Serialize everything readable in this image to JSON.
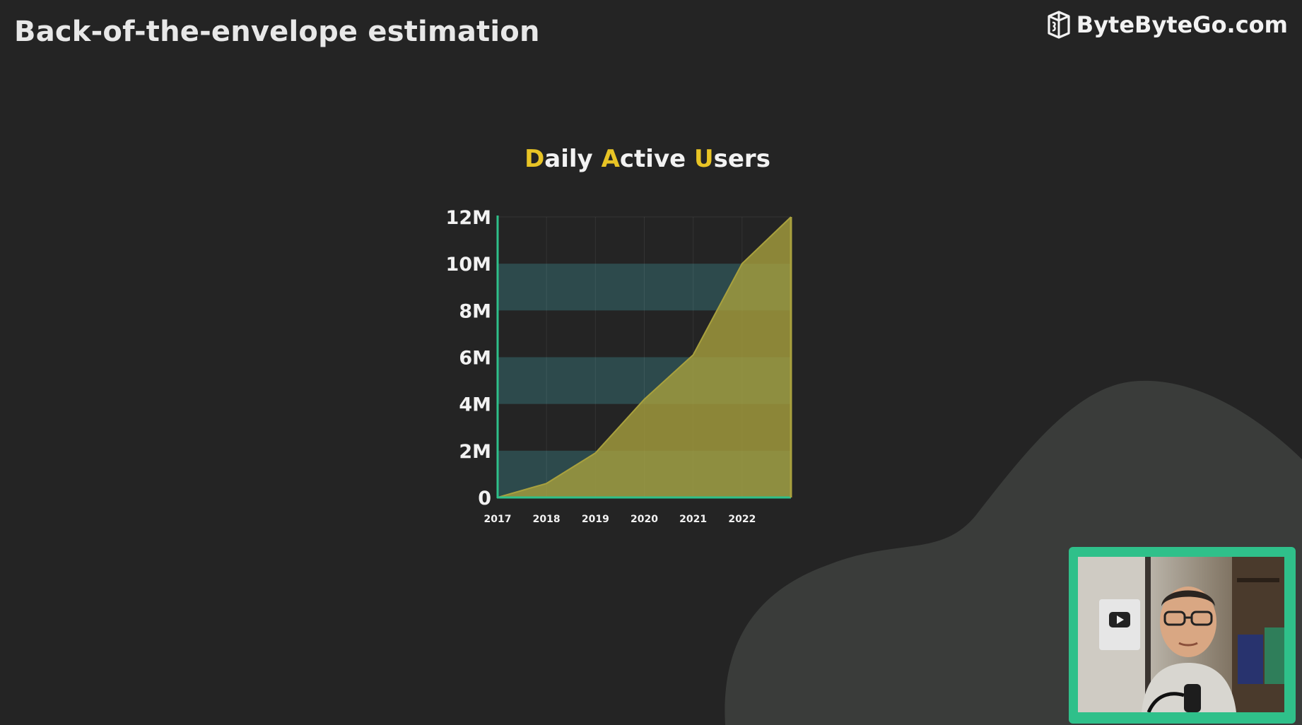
{
  "header": {
    "title": "Back-of-the-envelope estimation",
    "brand": "ByteByteGo.com"
  },
  "colors": {
    "background": "#242424",
    "blob": "#3a3c3a",
    "axis": "#2fc08a",
    "band": "#2d4a4c",
    "area": "#a9a13e",
    "title_accent": "#e8c425",
    "title_text": "#f2f2f2"
  },
  "chart_data": {
    "type": "area",
    "title": "Daily Active Users",
    "title_parts": [
      {
        "text": "D",
        "accent": true
      },
      {
        "text": "aily ",
        "accent": false
      },
      {
        "text": "A",
        "accent": true
      },
      {
        "text": "ctive ",
        "accent": false
      },
      {
        "text": "U",
        "accent": true
      },
      {
        "text": "sers",
        "accent": false
      }
    ],
    "x_ticks": [
      "2017",
      "2018",
      "2019",
      "2020",
      "2021",
      "2022"
    ],
    "x": [
      2017,
      2018,
      2019,
      2020,
      2021,
      2022,
      2023
    ],
    "values": [
      0,
      0.6,
      1.9,
      4.2,
      6.1,
      10,
      12
    ],
    "unit": "M",
    "xlim": [
      2017,
      2023
    ],
    "ylim": [
      0,
      12
    ],
    "y_ticks": [
      {
        "value": 0,
        "label": "0"
      },
      {
        "value": 2,
        "label": "2M"
      },
      {
        "value": 4,
        "label": "4M"
      },
      {
        "value": 6,
        "label": "6M"
      },
      {
        "value": 8,
        "label": "8M"
      },
      {
        "value": 10,
        "label": "10M"
      },
      {
        "value": 12,
        "label": "12M"
      }
    ],
    "bands": [
      [
        0,
        2
      ],
      [
        4,
        6
      ],
      [
        8,
        10
      ]
    ],
    "grid": true,
    "legend": "none",
    "xlabel": "",
    "ylabel": ""
  },
  "presenter": {
    "icon": "presenter-video-thumbnail"
  }
}
